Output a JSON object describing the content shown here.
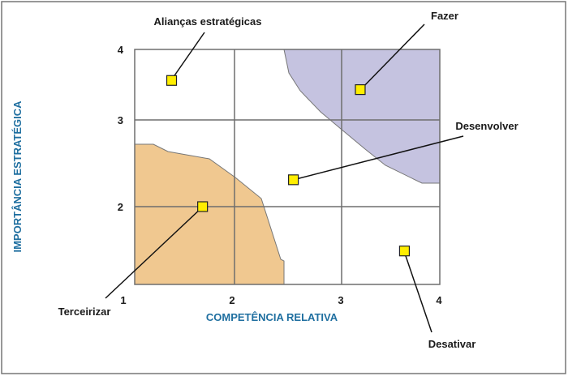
{
  "chart_data": {
    "type": "scatter",
    "xlabel": "COMPETÊNCIA RELATIVA",
    "ylabel": "IMPORTÂNCIA ESTRATÉGICA",
    "xlim": [
      1,
      4
    ],
    "ylim": [
      1,
      4
    ],
    "x_ticks": [
      "1",
      "2",
      "3",
      "4"
    ],
    "y_ticks": [
      "2",
      "3",
      "4"
    ],
    "grid": true,
    "points": [
      {
        "label": "Alianças estratégicas",
        "x": 1.37,
        "y": 3.56
      },
      {
        "label": "Fazer",
        "x": 3.19,
        "y": 3.43
      },
      {
        "label": "Desenvolver",
        "x": 2.55,
        "y": 2.31
      },
      {
        "label": "Terceirizar",
        "x": 1.68,
        "y": 2.0
      },
      {
        "label": "Desativar",
        "x": 3.64,
        "y": 1.43
      }
    ],
    "colors": {
      "marker": "#ffee00",
      "region_low": "#f0c890",
      "region_high": "#c5c3e0",
      "axis_title": "#1f6fa0",
      "grid": "#6e6e6e"
    }
  }
}
